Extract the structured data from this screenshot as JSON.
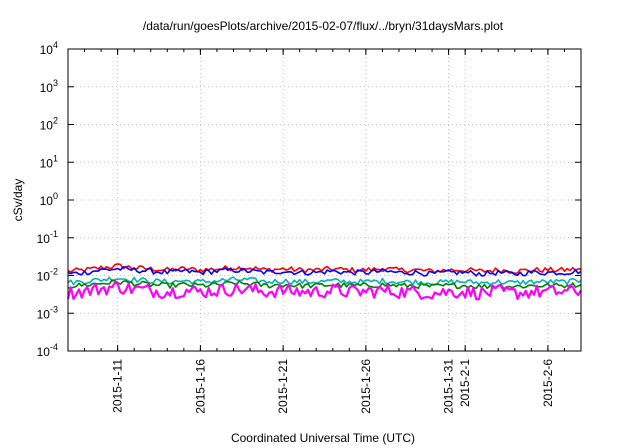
{
  "chart_data": {
    "type": "line",
    "title": "/data/run/goesPlots/archive/2015-02-07/flux/../bryn/31daysMars.plot",
    "xlabel": "Coordinated Universal Time (UTC)",
    "ylabel": "cSv/day",
    "yscale": "log",
    "ylim": [
      0.0001,
      10000
    ],
    "xlim": [
      "2015-01-08",
      "2015-02-08"
    ],
    "grid": true,
    "y_ticks": [
      {
        "base": "10",
        "exp": "-4",
        "value": 0.0001
      },
      {
        "base": "10",
        "exp": "-3",
        "value": 0.001
      },
      {
        "base": "10",
        "exp": "-2",
        "value": 0.01
      },
      {
        "base": "10",
        "exp": "-1",
        "value": 0.1
      },
      {
        "base": "10",
        "exp": "0",
        "value": 1
      },
      {
        "base": "10",
        "exp": "1",
        "value": 10
      },
      {
        "base": "10",
        "exp": "2",
        "value": 100
      },
      {
        "base": "10",
        "exp": "3",
        "value": 1000
      },
      {
        "base": "10",
        "exp": "4",
        "value": 10000
      }
    ],
    "x_ticks": [
      {
        "label": "2015-1-11",
        "date": "2015-01-11"
      },
      {
        "label": "2015-1-16",
        "date": "2015-01-16"
      },
      {
        "label": "2015-1-21",
        "date": "2015-01-21"
      },
      {
        "label": "2015-1-26",
        "date": "2015-01-26"
      },
      {
        "label": "2015-1-31",
        "date": "2015-01-31"
      },
      {
        "label": "2015-2-1",
        "date": "2015-02-01"
      },
      {
        "label": "2015-2-6",
        "date": "2015-02-06"
      }
    ],
    "x": [
      "2015-01-08",
      "2015-01-09",
      "2015-01-10",
      "2015-01-11",
      "2015-01-12",
      "2015-01-13",
      "2015-01-14",
      "2015-01-15",
      "2015-01-16",
      "2015-01-17",
      "2015-01-18",
      "2015-01-19",
      "2015-01-20",
      "2015-01-21",
      "2015-01-22",
      "2015-01-23",
      "2015-01-24",
      "2015-01-25",
      "2015-01-26",
      "2015-01-27",
      "2015-01-28",
      "2015-01-29",
      "2015-01-30",
      "2015-01-31",
      "2015-02-01",
      "2015-02-02",
      "2015-02-03",
      "2015-02-04",
      "2015-02-05",
      "2015-02-06",
      "2015-02-07",
      "2015-02-08"
    ],
    "series": [
      {
        "color": "#ff0000",
        "values": [
          0.013,
          0.014,
          0.016,
          0.018,
          0.016,
          0.015,
          0.014,
          0.015,
          0.014,
          0.015,
          0.016,
          0.016,
          0.014,
          0.015,
          0.014,
          0.014,
          0.015,
          0.014,
          0.014,
          0.015,
          0.014,
          0.014,
          0.013,
          0.014,
          0.014,
          0.013,
          0.014,
          0.013,
          0.014,
          0.014,
          0.014,
          0.015
        ]
      },
      {
        "color": "#0000ff",
        "values": [
          0.011,
          0.012,
          0.014,
          0.015,
          0.014,
          0.013,
          0.012,
          0.013,
          0.012,
          0.013,
          0.014,
          0.013,
          0.012,
          0.013,
          0.012,
          0.012,
          0.013,
          0.012,
          0.012,
          0.013,
          0.012,
          0.012,
          0.011,
          0.012,
          0.012,
          0.011,
          0.012,
          0.011,
          0.012,
          0.012,
          0.012,
          0.013
        ]
      },
      {
        "color": "#00b3b3",
        "values": [
          0.0065,
          0.007,
          0.0078,
          0.0085,
          0.0078,
          0.0072,
          0.0068,
          0.0072,
          0.0068,
          0.0072,
          0.0078,
          0.0076,
          0.0068,
          0.0072,
          0.0068,
          0.0068,
          0.0072,
          0.0068,
          0.0068,
          0.0072,
          0.0068,
          0.0068,
          0.0064,
          0.0068,
          0.0068,
          0.0064,
          0.0068,
          0.0064,
          0.0068,
          0.0068,
          0.0068,
          0.0072
        ]
      },
      {
        "color": "#008000",
        "values": [
          0.0052,
          0.0056,
          0.0062,
          0.0068,
          0.0062,
          0.0057,
          0.0054,
          0.0057,
          0.0054,
          0.0057,
          0.0062,
          0.006,
          0.0054,
          0.0057,
          0.0054,
          0.0054,
          0.0057,
          0.0054,
          0.0054,
          0.0057,
          0.0054,
          0.0054,
          0.0051,
          0.0054,
          0.0054,
          0.0051,
          0.0054,
          0.0051,
          0.0054,
          0.0054,
          0.0054,
          0.0057
        ]
      },
      {
        "color": "#ff00ff",
        "values": [
          0.0035,
          0.0038,
          0.0045,
          0.005,
          0.0044,
          0.004,
          0.0037,
          0.004,
          0.0037,
          0.004,
          0.0044,
          0.0042,
          0.0037,
          0.004,
          0.0037,
          0.0037,
          0.004,
          0.0037,
          0.0037,
          0.004,
          0.0037,
          0.0037,
          0.0034,
          0.0037,
          0.0037,
          0.0034,
          0.0037,
          0.0034,
          0.0037,
          0.0037,
          0.0037,
          0.004
        ]
      }
    ]
  }
}
